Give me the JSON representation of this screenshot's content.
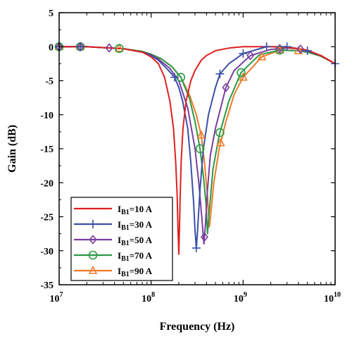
{
  "chart_data": {
    "type": "line",
    "title": "",
    "xlabel": "Frequency (Hz)",
    "ylabel": "Gain (dB)",
    "xscale": "log",
    "xlim": [
      10000000,
      10000000000
    ],
    "ylim": [
      -35,
      5
    ],
    "grid": false,
    "legend_position": "bottom-left",
    "x_ticks": [
      {
        "value": 10000000,
        "base": "10",
        "exp": "7"
      },
      {
        "value": 100000000,
        "base": "10",
        "exp": "8"
      },
      {
        "value": 1000000000,
        "base": "10",
        "exp": "9"
      },
      {
        "value": 10000000000,
        "base": "10",
        "exp": "10"
      }
    ],
    "y_ticks": [
      5,
      0,
      -5,
      -10,
      -15,
      -20,
      -25,
      -30,
      -35
    ],
    "series": [
      {
        "label_main": "I",
        "label_sub": "B1",
        "label_rest": "=10 A",
        "color": "#e02020",
        "marker": "none",
        "x": [
          10000000,
          20000000,
          50000000,
          80000000,
          100000000,
          120000000,
          140000000,
          160000000,
          175000000,
          185000000,
          192000000,
          196000000,
          200000000,
          203000000,
          207000000,
          212000000,
          222000000,
          240000000,
          270000000,
          300000000,
          350000000,
          400000000,
          500000000,
          700000000,
          1000000000,
          2000000000,
          3000000000,
          4000000000,
          5000000000,
          7000000000,
          10000000000
        ],
        "y": [
          0,
          0,
          -0.3,
          -0.8,
          -1.5,
          -2.5,
          -4.5,
          -8,
          -12,
          -17,
          -22,
          -27,
          -30.5,
          -27,
          -22,
          -17,
          -12,
          -8,
          -5,
          -3.5,
          -2,
          -1.3,
          -0.6,
          -0.2,
          0,
          0,
          -0.1,
          -0.3,
          -0.5,
          -1.3,
          -2.5
        ],
        "marker_x": []
      },
      {
        "label_main": "I",
        "label_sub": "B1",
        "label_rest": "=30 A",
        "color": "#3a4fa8",
        "marker": "plus",
        "x": [
          10000000,
          20000000,
          50000000,
          80000000,
          100000000,
          120000000,
          150000000,
          180000000,
          200000000,
          220000000,
          250000000,
          270000000,
          290000000,
          300000000,
          310000000,
          320000000,
          340000000,
          370000000,
          420000000,
          500000000,
          560000000,
          700000000,
          1000000000,
          1800000000,
          3000000000,
          4000000000,
          5000000000,
          7000000000,
          10000000000
        ],
        "y": [
          0,
          0,
          -0.3,
          -0.8,
          -1.3,
          -2,
          -3.3,
          -4.5,
          -6,
          -8,
          -12,
          -17,
          -23,
          -27,
          -29.6,
          -27,
          -21,
          -15,
          -10,
          -6,
          -4,
          -2.5,
          -1,
          0,
          0,
          -0.3,
          -0.6,
          -1.3,
          -2.5
        ],
        "marker_x": [
          10000000,
          17000000,
          180000000,
          310000000,
          560000000,
          1000000000,
          1800000000,
          3000000000,
          5000000000,
          10000000000
        ]
      },
      {
        "label_main": "I",
        "label_sub": "B1",
        "label_rest": "=50 A",
        "color": "#7a3fa0",
        "marker": "diamond",
        "x": [
          10000000,
          20000000,
          50000000,
          80000000,
          100000000,
          120000000,
          160000000,
          200000000,
          250000000,
          300000000,
          330000000,
          355000000,
          375000000,
          390000000,
          410000000,
          440000000,
          500000000,
          650000000,
          800000000,
          1200000000,
          2000000000,
          3000000000,
          4000000000,
          5000000000,
          7000000000,
          10000000000
        ],
        "y": [
          0,
          0,
          -0.3,
          -0.8,
          -1.2,
          -1.8,
          -3.2,
          -5,
          -9,
          -15,
          -20,
          -25,
          -29,
          -26,
          -21,
          -16,
          -12,
          -6,
          -3.5,
          -1.3,
          -0.4,
          -0.2,
          -0.3,
          -0.6,
          -1.3,
          -2.5
        ],
        "marker_x": [
          10000000,
          17000000,
          35000000,
          380000000,
          650000000,
          1200000000,
          2500000000,
          4200000000
        ]
      },
      {
        "label_main": "I",
        "label_sub": "B1",
        "label_rest": "=70 A",
        "color": "#2a9a44",
        "marker": "circle",
        "x": [
          10000000,
          20000000,
          50000000,
          80000000,
          100000000,
          130000000,
          170000000,
          210000000,
          260000000,
          300000000,
          340000000,
          370000000,
          395000000,
          410000000,
          430000000,
          470000000,
          550000000,
          700000000,
          950000000,
          1500000000,
          2500000000,
          4000000000,
          5000000000,
          7000000000,
          10000000000
        ],
        "y": [
          0,
          0,
          -0.3,
          -0.7,
          -1.1,
          -1.8,
          -3,
          -4.5,
          -7.5,
          -11,
          -15,
          -19,
          -23,
          -27.5,
          -24,
          -18,
          -13,
          -8,
          -3.8,
          -1.2,
          -0.5,
          -0.6,
          -0.8,
          -1.4,
          -2.5
        ],
        "marker_x": [
          10000000,
          17000000,
          45000000,
          210000000,
          340000000,
          560000000,
          950000000,
          2500000000
        ]
      },
      {
        "label_main": "I",
        "label_sub": "B1",
        "label_rest": "=90 A",
        "color": "#f07a2a",
        "marker": "triangle",
        "x": [
          10000000,
          20000000,
          50000000,
          80000000,
          100000000,
          130000000,
          170000000,
          210000000,
          260000000,
          310000000,
          350000000,
          380000000,
          410000000,
          430000000,
          450000000,
          480000000,
          550000000,
          650000000,
          800000000,
          1000000000,
          1600000000,
          2500000000,
          4000000000,
          5000000000,
          7000000000,
          10000000000
        ],
        "y": [
          0,
          0,
          -0.3,
          -0.7,
          -1.1,
          -1.8,
          -3,
          -4.5,
          -7,
          -10,
          -13,
          -17,
          -22,
          -26.5,
          -24,
          -20,
          -15,
          -11,
          -7,
          -4.5,
          -1.5,
          -0.5,
          -0.6,
          -0.8,
          -1.4,
          -2.5
        ],
        "marker_x": [
          10000000,
          17000000,
          45000000,
          350000000,
          570000000,
          1000000000,
          1600000000,
          2500000000,
          4000000000
        ]
      }
    ]
  }
}
